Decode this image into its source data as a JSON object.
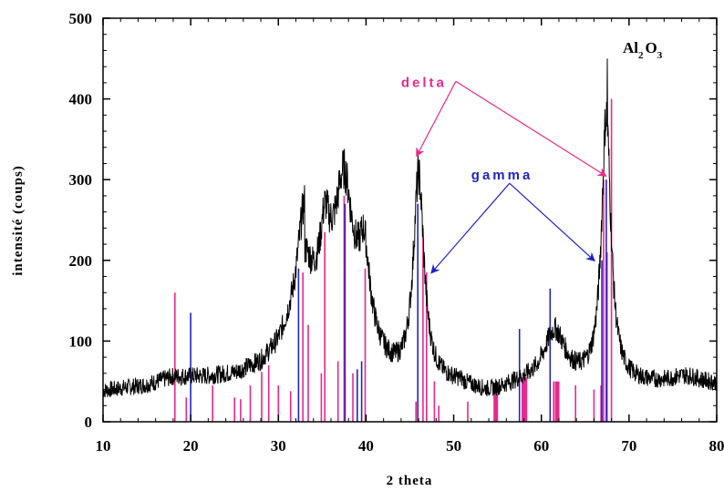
{
  "chart_data": {
    "type": "line",
    "xlabel": "2 theta",
    "ylabel": "intensité (coups)",
    "xlim": [
      10,
      80
    ],
    "ylim": [
      0,
      500
    ],
    "x_ticks": [
      10,
      20,
      30,
      40,
      50,
      60,
      70,
      80
    ],
    "y_ticks": [
      0,
      100,
      200,
      300,
      400,
      500
    ],
    "grid": false,
    "legend": "none",
    "formula": {
      "main1": "Al",
      "sub1": "2",
      "main2": "O",
      "sub2": "3"
    },
    "annotations": [
      {
        "text": "delta",
        "color": "#e8288a",
        "x": 44.0,
        "y": 415,
        "points_to": [
          [
            45.8,
            330
          ],
          [
            67.3,
            305
          ]
        ]
      },
      {
        "text": "gamma",
        "color": "#1f24c8",
        "x": 52.0,
        "y": 300,
        "points_to": [
          [
            47.5,
            185
          ],
          [
            66.0,
            200
          ]
        ]
      }
    ],
    "pattern": {
      "baseline": [
        [
          10,
          38
        ],
        [
          15,
          45
        ],
        [
          18,
          55
        ],
        [
          22,
          55
        ],
        [
          25,
          58
        ],
        [
          28,
          70
        ],
        [
          30,
          90
        ],
        [
          32,
          130
        ],
        [
          33,
          170
        ]
      ],
      "peaks": [
        {
          "x": 32.9,
          "h": 90,
          "w": 1.0
        },
        {
          "x": 35.3,
          "h": 70,
          "w": 0.6
        },
        {
          "x": 37.5,
          "h": 135,
          "w": 1.1
        },
        {
          "x": 39.8,
          "h": 90,
          "w": 0.7
        },
        {
          "x": 46.0,
          "h": 255,
          "w": 0.75
        },
        {
          "x": 61.5,
          "h": 65,
          "w": 1.5
        },
        {
          "x": 67.4,
          "h": 330,
          "w": 0.65
        },
        {
          "x": 76.5,
          "h": 10,
          "w": 2.0
        }
      ],
      "max_point": [
        67.5,
        450
      ]
    },
    "series": [
      {
        "name": "delta",
        "color": "#e8288a",
        "sticks": [
          [
            18.2,
            160
          ],
          [
            19.5,
            30
          ],
          [
            22.5,
            45
          ],
          [
            25.0,
            30
          ],
          [
            25.7,
            28
          ],
          [
            26.8,
            45
          ],
          [
            28.1,
            62
          ],
          [
            28.9,
            70
          ],
          [
            30.0,
            45
          ],
          [
            31.4,
            38
          ],
          [
            32.8,
            185
          ],
          [
            33.4,
            120
          ],
          [
            34.9,
            60
          ],
          [
            35.3,
            235
          ],
          [
            36.8,
            75
          ],
          [
            37.5,
            280
          ],
          [
            38.5,
            60
          ],
          [
            39.9,
            190
          ],
          [
            45.7,
            25
          ],
          [
            46.5,
            240
          ],
          [
            46.9,
            185
          ],
          [
            47.8,
            50
          ],
          [
            48.3,
            20
          ],
          [
            51.6,
            25
          ],
          [
            54.8,
            35
          ],
          [
            58.0,
            55
          ],
          [
            58.3,
            55
          ],
          [
            61.4,
            50
          ],
          [
            61.8,
            50
          ],
          [
            63.9,
            45
          ],
          [
            66.0,
            40
          ],
          [
            66.8,
            45
          ],
          [
            67.1,
            300
          ],
          [
            67.5,
            210
          ],
          [
            68.0,
            400
          ]
        ]
      },
      {
        "name": "gamma",
        "color": "#1f24c8",
        "sticks": [
          [
            20.0,
            135
          ],
          [
            32.3,
            190
          ],
          [
            37.6,
            270
          ],
          [
            39.0,
            65
          ],
          [
            39.5,
            75
          ],
          [
            45.9,
            270
          ],
          [
            57.5,
            115
          ],
          [
            61.0,
            165
          ],
          [
            66.9,
            200
          ],
          [
            67.4,
            300
          ]
        ]
      }
    ]
  }
}
